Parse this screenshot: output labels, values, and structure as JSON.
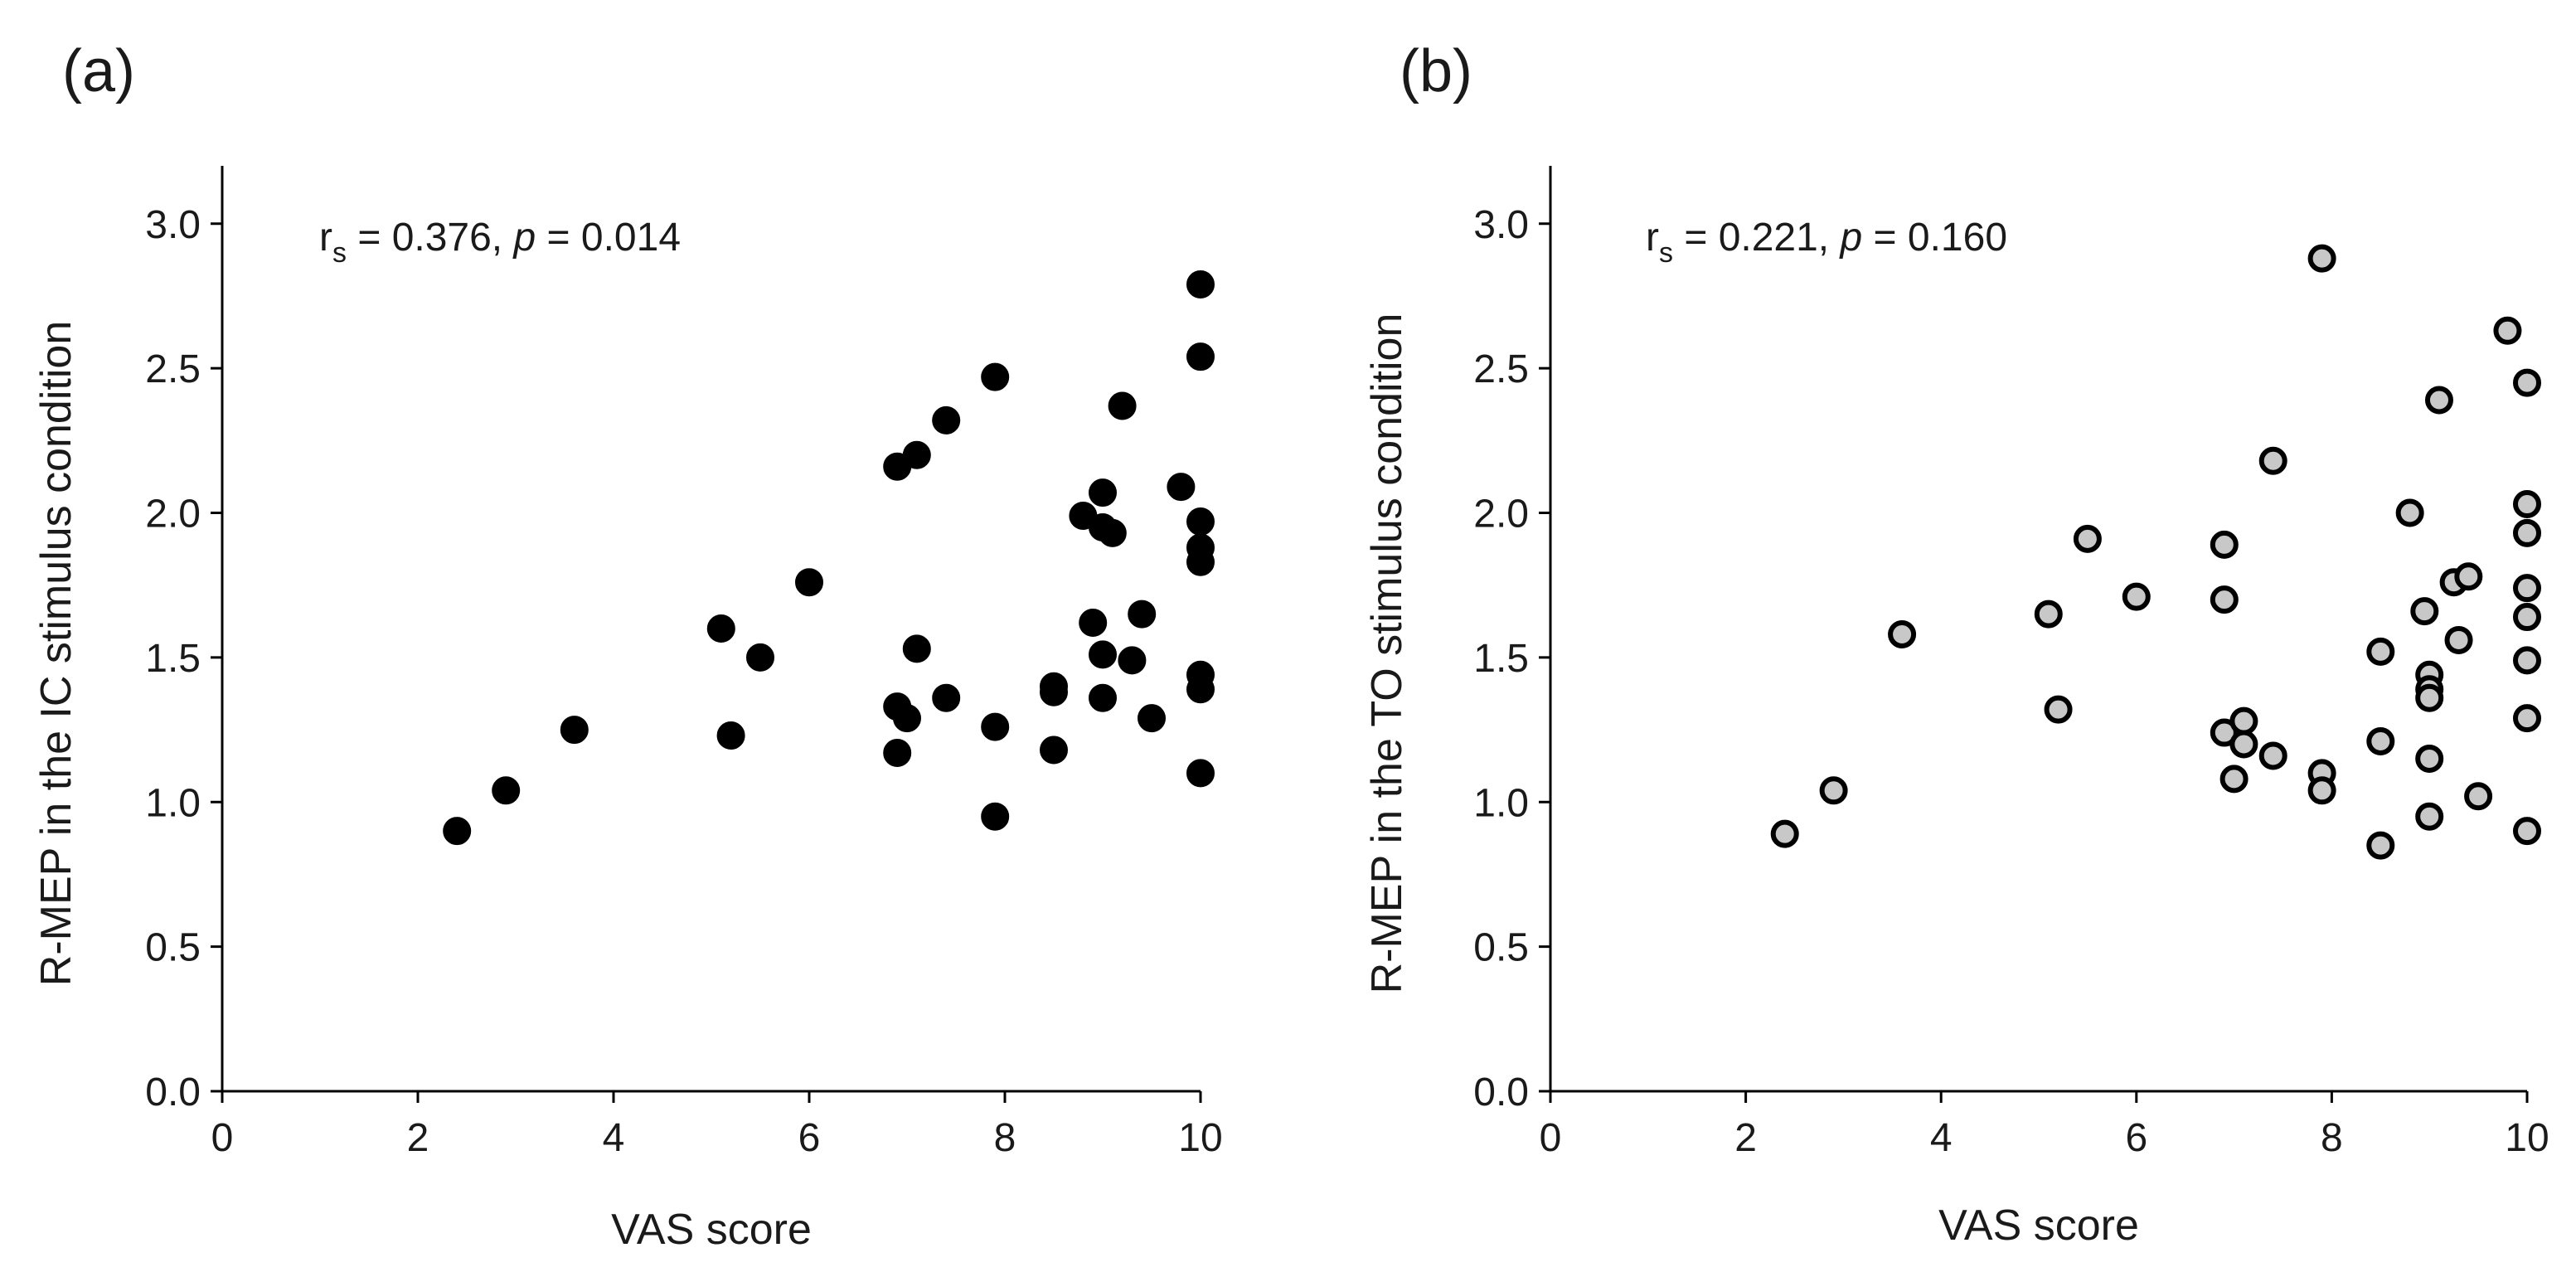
{
  "chart_data": [
    {
      "type": "scatter",
      "panel_label": "(a)",
      "annotation": {
        "r_symbol": "r",
        "r_sub": "s",
        "r_value": " = 0.376, ",
        "p_symbol": "p",
        "p_value": " = 0.014"
      },
      "xlabel": "VAS score",
      "ylabel": "R-MEP in the IC stimulus condition",
      "xlim": [
        0,
        10
      ],
      "ylim": [
        0,
        3.2
      ],
      "xticks": [
        0,
        2,
        4,
        6,
        8,
        10
      ],
      "xtick_labels": [
        "0",
        "2",
        "4",
        "6",
        "8",
        "10"
      ],
      "yticks": [
        0,
        0.5,
        1.0,
        1.5,
        2.0,
        2.5,
        3.0
      ],
      "ytick_labels": [
        "0.0",
        "0.5",
        "1.0",
        "1.5",
        "2.0",
        "2.5",
        "3.0"
      ],
      "marker_fill": "#000000",
      "marker_stroke": "#000000",
      "series": [
        {
          "name": "IC",
          "x": [
            2.4,
            2.9,
            3.6,
            5.1,
            5.2,
            5.5,
            6.0,
            6.9,
            6.9,
            6.9,
            7.0,
            7.1,
            7.1,
            7.4,
            7.4,
            7.9,
            7.9,
            7.9,
            8.5,
            8.5,
            8.5,
            8.8,
            8.9,
            9.0,
            9.0,
            9.0,
            9.0,
            9.1,
            9.2,
            9.3,
            9.4,
            9.5,
            9.8,
            10.0,
            10.0,
            10.0,
            10.0,
            10.0,
            10.0,
            10.0,
            10.0
          ],
          "y": [
            0.9,
            1.04,
            1.25,
            1.6,
            1.23,
            1.5,
            1.76,
            2.16,
            1.33,
            1.17,
            1.29,
            2.2,
            1.53,
            2.32,
            1.36,
            2.47,
            1.26,
            0.95,
            1.4,
            1.38,
            1.18,
            1.99,
            1.62,
            2.07,
            1.95,
            1.51,
            1.36,
            1.93,
            2.37,
            1.49,
            1.65,
            1.29,
            2.09,
            2.79,
            2.54,
            1.97,
            1.88,
            1.83,
            1.44,
            1.39,
            1.1
          ]
        }
      ]
    },
    {
      "type": "scatter",
      "panel_label": "(b)",
      "annotation": {
        "r_symbol": "r",
        "r_sub": "s",
        "r_value": " = 0.221, ",
        "p_symbol": "p",
        "p_value": " = 0.160"
      },
      "xlabel": "VAS score",
      "ylabel": "R-MEP in the TO stimulus condition",
      "xlim": [
        0,
        10
      ],
      "ylim": [
        0,
        3.2
      ],
      "xticks": [
        0,
        2,
        4,
        6,
        8,
        10
      ],
      "xtick_labels": [
        "0",
        "2",
        "4",
        "6",
        "8",
        "10"
      ],
      "yticks": [
        0,
        0.5,
        1.0,
        1.5,
        2.0,
        2.5,
        3.0
      ],
      "ytick_labels": [
        "0.0",
        "0.5",
        "1.0",
        "1.5",
        "2.0",
        "2.5",
        "3.0"
      ],
      "marker_fill": "#c8c8c8",
      "marker_stroke": "#000000",
      "series": [
        {
          "name": "TO",
          "x": [
            2.4,
            2.9,
            3.6,
            5.1,
            5.2,
            5.5,
            6.0,
            6.9,
            6.9,
            6.9,
            7.0,
            7.1,
            7.1,
            7.4,
            7.4,
            7.9,
            7.9,
            7.9,
            8.5,
            8.5,
            8.5,
            8.8,
            8.95,
            9.0,
            9.0,
            9.0,
            9.0,
            9.0,
            9.1,
            9.25,
            9.3,
            9.4,
            9.5,
            9.8,
            10.0,
            10.0,
            10.0,
            10.0,
            10.0,
            10.0,
            10.0,
            10.0
          ],
          "y": [
            0.89,
            1.04,
            1.58,
            1.65,
            1.32,
            1.91,
            1.71,
            1.89,
            1.7,
            1.24,
            1.08,
            1.28,
            1.2,
            2.18,
            1.16,
            2.88,
            1.1,
            1.04,
            1.52,
            1.21,
            0.85,
            2.0,
            1.66,
            1.44,
            1.39,
            1.36,
            1.15,
            0.95,
            2.39,
            1.76,
            1.56,
            1.78,
            1.02,
            2.63,
            2.45,
            2.03,
            1.93,
            1.74,
            1.64,
            1.49,
            1.29,
            0.9
          ]
        }
      ]
    }
  ]
}
